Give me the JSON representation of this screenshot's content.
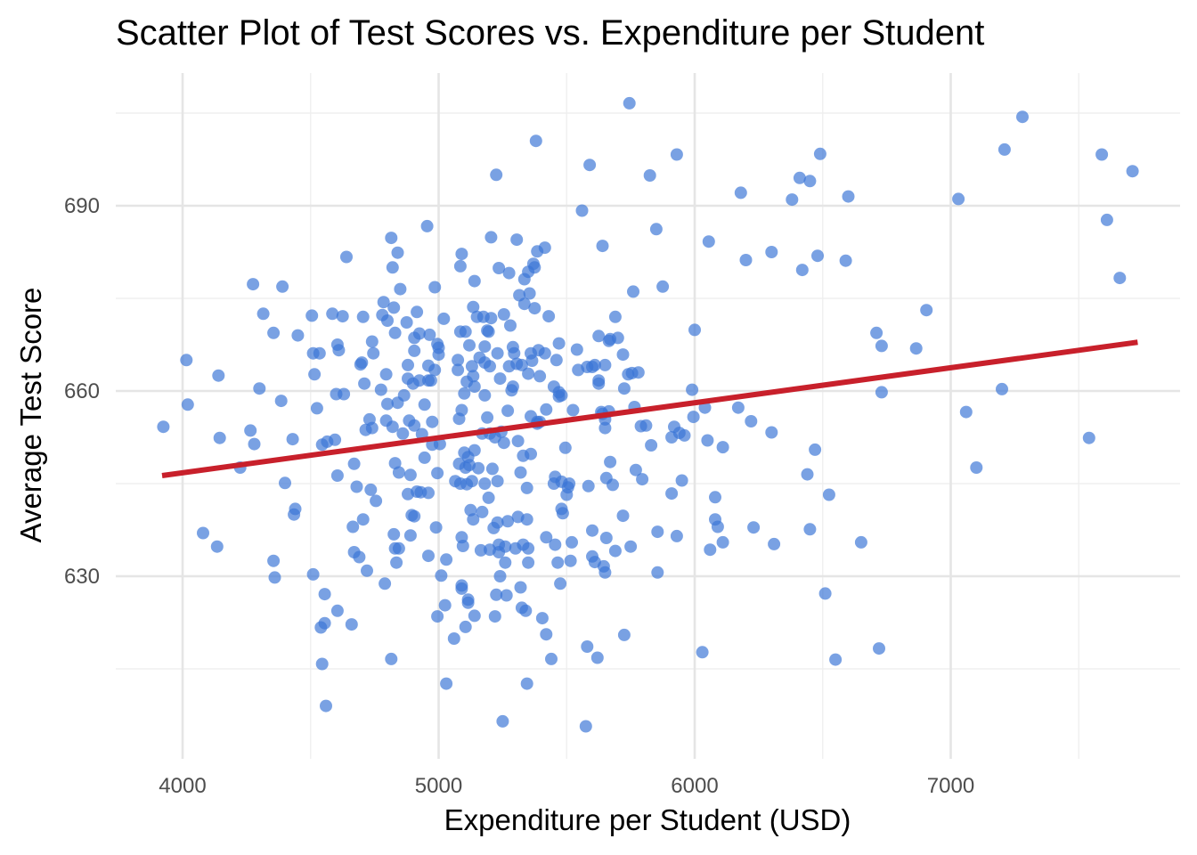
{
  "chart_data": {
    "type": "scatter",
    "title": "Scatter Plot of Test Scores vs. Expenditure per Student",
    "xlabel": "Expenditure per Student (USD)",
    "ylabel": "Average Test Score",
    "xlim": [
      3740,
      7800
    ],
    "ylim": [
      603,
      707
    ],
    "x_ticks": [
      4000,
      5000,
      6000,
      7000
    ],
    "y_ticks": [
      630,
      660,
      690
    ],
    "grid": true,
    "legend": "none",
    "colors": {
      "points": "#3a75d6",
      "trend": "#c8202b"
    },
    "trendline": {
      "x": [
        3920,
        7730
      ],
      "y": [
        646.3,
        667.9
      ]
    },
    "points": [
      [
        3925,
        654.2
      ],
      [
        4015,
        665.0
      ],
      [
        4020,
        657.8
      ],
      [
        4080,
        637.0
      ],
      [
        4135,
        634.8
      ],
      [
        4140,
        662.5
      ],
      [
        4145,
        652.4
      ],
      [
        4225,
        647.6
      ],
      [
        4265,
        653.6
      ],
      [
        4275,
        677.3
      ],
      [
        4280,
        651.4
      ],
      [
        4300,
        660.4
      ],
      [
        4315,
        672.5
      ],
      [
        4355,
        669.4
      ],
      [
        4360,
        629.8
      ],
      [
        4355,
        632.5
      ],
      [
        4385,
        658.4
      ],
      [
        4390,
        676.9
      ],
      [
        4400,
        645.1
      ],
      [
        4430,
        652.2
      ],
      [
        4435,
        640.0
      ],
      [
        4440,
        640.9
      ],
      [
        4450,
        669.0
      ],
      [
        4505,
        672.2
      ],
      [
        4510,
        666.1
      ],
      [
        4510,
        630.3
      ],
      [
        4515,
        662.7
      ],
      [
        4525,
        657.2
      ],
      [
        4535,
        666.1
      ],
      [
        4540,
        621.7
      ],
      [
        4545,
        651.3
      ],
      [
        4545,
        615.8
      ],
      [
        4555,
        622.4
      ],
      [
        4555,
        627.1
      ],
      [
        4560,
        609.0
      ],
      [
        4565,
        651.8
      ],
      [
        4585,
        672.5
      ],
      [
        4595,
        652.1
      ],
      [
        4600,
        659.5
      ],
      [
        4605,
        646.3
      ],
      [
        4605,
        667.5
      ],
      [
        4605,
        624.4
      ],
      [
        4610,
        666.6
      ],
      [
        4625,
        672.1
      ],
      [
        4630,
        659.5
      ],
      [
        4640,
        681.7
      ],
      [
        4660,
        622.2
      ],
      [
        4665,
        638.0
      ],
      [
        4670,
        648.2
      ],
      [
        4670,
        633.9
      ],
      [
        4680,
        644.5
      ],
      [
        4690,
        633.1
      ],
      [
        4695,
        664.3
      ],
      [
        4700,
        664.6
      ],
      [
        4705,
        639.2
      ],
      [
        4705,
        672.0
      ],
      [
        4710,
        661.2
      ],
      [
        4715,
        653.7
      ],
      [
        4720,
        630.9
      ],
      [
        4730,
        655.4
      ],
      [
        4735,
        644.0
      ],
      [
        4740,
        668.0
      ],
      [
        4740,
        654.0
      ],
      [
        4745,
        666.1
      ],
      [
        4755,
        642.2
      ],
      [
        4775,
        660.2
      ],
      [
        4780,
        672.3
      ],
      [
        4785,
        674.4
      ],
      [
        4790,
        628.8
      ],
      [
        4795,
        662.7
      ],
      [
        4795,
        655.2
      ],
      [
        4800,
        671.4
      ],
      [
        4800,
        657.9
      ],
      [
        4815,
        684.8
      ],
      [
        4815,
        616.6
      ],
      [
        4820,
        654.2
      ],
      [
        4820,
        680.0
      ],
      [
        4825,
        673.5
      ],
      [
        4825,
        636.8
      ],
      [
        4830,
        669.4
      ],
      [
        4830,
        634.5
      ],
      [
        4830,
        648.3
      ],
      [
        4835,
        632.2
      ],
      [
        4840,
        682.4
      ],
      [
        4840,
        658.1
      ],
      [
        4845,
        646.8
      ],
      [
        4845,
        634.5
      ],
      [
        4850,
        676.5
      ],
      [
        4860,
        653.1
      ],
      [
        4865,
        659.3
      ],
      [
        4875,
        671.1
      ],
      [
        4880,
        643.3
      ],
      [
        4880,
        664.2
      ],
      [
        4880,
        662.0
      ],
      [
        4885,
        655.2
      ],
      [
        4890,
        646.4
      ],
      [
        4890,
        636.6
      ],
      [
        4895,
        639.9
      ],
      [
        4900,
        661.2
      ],
      [
        4905,
        654.4
      ],
      [
        4905,
        666.5
      ],
      [
        4905,
        639.7
      ],
      [
        4905,
        668.6
      ],
      [
        4915,
        643.7
      ],
      [
        4915,
        672.8
      ],
      [
        4925,
        669.3
      ],
      [
        4925,
        661.7
      ],
      [
        4930,
        643.6
      ],
      [
        4935,
        653.0
      ],
      [
        4945,
        649.2
      ],
      [
        4945,
        657.8
      ],
      [
        4955,
        686.7
      ],
      [
        4960,
        664.1
      ],
      [
        4960,
        633.3
      ],
      [
        4960,
        661.7
      ],
      [
        4960,
        643.5
      ],
      [
        4965,
        669.1
      ],
      [
        4970,
        661.7
      ],
      [
        4975,
        655.0
      ],
      [
        4975,
        651.3
      ],
      [
        4985,
        676.8
      ],
      [
        4985,
        663.4
      ],
      [
        4990,
        637.9
      ],
      [
        4995,
        667.6
      ],
      [
        4995,
        646.7
      ],
      [
        4995,
        623.5
      ],
      [
        5000,
        667.0
      ],
      [
        5000,
        665.9
      ],
      [
        5005,
        651.4
      ],
      [
        5010,
        630.1
      ],
      [
        5020,
        671.7
      ],
      [
        5025,
        625.3
      ],
      [
        5030,
        632.7
      ],
      [
        5030,
        612.6
      ],
      [
        5060,
        619.9
      ],
      [
        5065,
        645.4
      ],
      [
        5075,
        663.4
      ],
      [
        5075,
        665.0
      ],
      [
        5080,
        655.5
      ],
      [
        5080,
        648.2
      ],
      [
        5085,
        680.2
      ],
      [
        5085,
        669.6
      ],
      [
        5085,
        645.0
      ],
      [
        5090,
        682.2
      ],
      [
        5090,
        656.9
      ],
      [
        5090,
        636.3
      ],
      [
        5090,
        628.5
      ],
      [
        5090,
        628.0
      ],
      [
        5095,
        634.9
      ],
      [
        5100,
        659.6
      ],
      [
        5100,
        650.0
      ],
      [
        5105,
        669.6
      ],
      [
        5105,
        647.6
      ],
      [
        5105,
        621.8
      ],
      [
        5110,
        661.5
      ],
      [
        5110,
        644.9
      ],
      [
        5115,
        649.3
      ],
      [
        5115,
        625.7
      ],
      [
        5115,
        626.2
      ],
      [
        5120,
        667.4
      ],
      [
        5120,
        648.0
      ],
      [
        5125,
        640.7
      ],
      [
        5130,
        664.0
      ],
      [
        5130,
        645.4
      ],
      [
        5135,
        673.6
      ],
      [
        5135,
        662.4
      ],
      [
        5135,
        639.2
      ],
      [
        5140,
        677.8
      ],
      [
        5140,
        660.7
      ],
      [
        5140,
        650.4
      ],
      [
        5140,
        623.6
      ],
      [
        5150,
        672.0
      ],
      [
        5155,
        647.5
      ],
      [
        5160,
        665.4
      ],
      [
        5165,
        634.2
      ],
      [
        5170,
        640.4
      ],
      [
        5170,
        653.1
      ],
      [
        5175,
        672.0
      ],
      [
        5180,
        667.2
      ],
      [
        5180,
        659.3
      ],
      [
        5180,
        664.6
      ],
      [
        5180,
        645.0
      ],
      [
        5190,
        669.8
      ],
      [
        5190,
        655.7
      ],
      [
        5195,
        669.6
      ],
      [
        5195,
        642.7
      ],
      [
        5200,
        664.0
      ],
      [
        5200,
        653.1
      ],
      [
        5200,
        634.3
      ],
      [
        5205,
        684.9
      ],
      [
        5205,
        671.8
      ],
      [
        5210,
        647.4
      ],
      [
        5215,
        637.8
      ],
      [
        5220,
        652.5
      ],
      [
        5220,
        623.5
      ],
      [
        5225,
        695.0
      ],
      [
        5225,
        627.0
      ],
      [
        5230,
        666.1
      ],
      [
        5230,
        645.4
      ],
      [
        5230,
        638.7
      ],
      [
        5235,
        679.9
      ],
      [
        5235,
        635.1
      ],
      [
        5235,
        633.9
      ],
      [
        5240,
        662.0
      ],
      [
        5240,
        630.0
      ],
      [
        5245,
        653.4
      ],
      [
        5250,
        606.5
      ],
      [
        5255,
        672.4
      ],
      [
        5255,
        651.6
      ],
      [
        5260,
        634.8
      ],
      [
        5260,
        632.2
      ],
      [
        5265,
        626.9
      ],
      [
        5270,
        656.8
      ],
      [
        5270,
        638.9
      ],
      [
        5275,
        679.1
      ],
      [
        5275,
        664.0
      ],
      [
        5280,
        670.6
      ],
      [
        5285,
        660.1
      ],
      [
        5290,
        667.1
      ],
      [
        5290,
        660.7
      ],
      [
        5295,
        666.1
      ],
      [
        5300,
        634.5
      ],
      [
        5305,
        684.5
      ],
      [
        5305,
        664.4
      ],
      [
        5310,
        639.6
      ],
      [
        5310,
        651.9
      ],
      [
        5315,
        675.5
      ],
      [
        5320,
        628.2
      ],
      [
        5320,
        646.8
      ],
      [
        5325,
        664.2
      ],
      [
        5325,
        624.9
      ],
      [
        5330,
        649.5
      ],
      [
        5330,
        635.1
      ],
      [
        5335,
        674.1
      ],
      [
        5335,
        678.1
      ],
      [
        5340,
        624.4
      ],
      [
        5345,
        612.6
      ],
      [
        5345,
        639.2
      ],
      [
        5345,
        644.3
      ],
      [
        5350,
        679.3
      ],
      [
        5350,
        662.8
      ],
      [
        5350,
        634.5
      ],
      [
        5350,
        632.2
      ],
      [
        5355,
        675.8
      ],
      [
        5360,
        666.1
      ],
      [
        5360,
        649.8
      ],
      [
        5360,
        655.9
      ],
      [
        5365,
        664.9
      ],
      [
        5370,
        680.6
      ],
      [
        5375,
        680.0
      ],
      [
        5375,
        673.4
      ],
      [
        5380,
        700.5
      ],
      [
        5385,
        655.0
      ],
      [
        5385,
        654.7
      ],
      [
        5385,
        682.6
      ],
      [
        5390,
        666.6
      ],
      [
        5395,
        662.4
      ],
      [
        5395,
        655.0
      ],
      [
        5405,
        623.2
      ],
      [
        5415,
        683.2
      ],
      [
        5415,
        666.1
      ],
      [
        5420,
        657.0
      ],
      [
        5420,
        636.3
      ],
      [
        5420,
        620.6
      ],
      [
        5430,
        672.1
      ],
      [
        5440,
        616.6
      ],
      [
        5450,
        645.0
      ],
      [
        5450,
        660.7
      ],
      [
        5455,
        635.1
      ],
      [
        5455,
        646.1
      ],
      [
        5460,
        665.0
      ],
      [
        5465,
        632.2
      ],
      [
        5470,
        659.8
      ],
      [
        5470,
        667.7
      ],
      [
        5470,
        659.1
      ],
      [
        5475,
        628.8
      ],
      [
        5480,
        659.3
      ],
      [
        5480,
        640.9
      ],
      [
        5480,
        645.3
      ],
      [
        5485,
        640.2
      ],
      [
        5495,
        650.8
      ],
      [
        5500,
        643.2
      ],
      [
        5505,
        644.4
      ],
      [
        5510,
        645.0
      ],
      [
        5515,
        632.5
      ],
      [
        5520,
        635.5
      ],
      [
        5525,
        656.9
      ],
      [
        5540,
        666.7
      ],
      [
        5545,
        663.4
      ],
      [
        5560,
        689.2
      ],
      [
        5575,
        605.7
      ],
      [
        5580,
        663.9
      ],
      [
        5580,
        618.6
      ],
      [
        5585,
        644.6
      ],
      [
        5590,
        696.6
      ],
      [
        5600,
        663.9
      ],
      [
        5600,
        637.4
      ],
      [
        5600,
        633.2
      ],
      [
        5610,
        664.2
      ],
      [
        5610,
        632.3
      ],
      [
        5620,
        616.8
      ],
      [
        5625,
        668.9
      ],
      [
        5625,
        661.7
      ],
      [
        5625,
        661.2
      ],
      [
        5635,
        656.6
      ],
      [
        5640,
        656.3
      ],
      [
        5640,
        683.5
      ],
      [
        5645,
        631.6
      ],
      [
        5650,
        664.2
      ],
      [
        5650,
        655.4
      ],
      [
        5650,
        654.0
      ],
      [
        5650,
        630.6
      ],
      [
        5655,
        636.2
      ],
      [
        5655,
        645.9
      ],
      [
        5665,
        656.7
      ],
      [
        5665,
        668.1
      ],
      [
        5670,
        668.4
      ],
      [
        5670,
        648.5
      ],
      [
        5680,
        644.8
      ],
      [
        5690,
        634.1
      ],
      [
        5690,
        672.0
      ],
      [
        5700,
        668.6
      ],
      [
        5720,
        665.9
      ],
      [
        5720,
        639.8
      ],
      [
        5725,
        660.4
      ],
      [
        5725,
        620.5
      ],
      [
        5740,
        662.7
      ],
      [
        5745,
        706.6
      ],
      [
        5750,
        634.8
      ],
      [
        5755,
        662.9
      ],
      [
        5760,
        676.1
      ],
      [
        5765,
        657.4
      ],
      [
        5770,
        647.2
      ],
      [
        5780,
        663.0
      ],
      [
        5790,
        654.3
      ],
      [
        5795,
        645.7
      ],
      [
        5810,
        654.4
      ],
      [
        5825,
        694.9
      ],
      [
        5830,
        651.2
      ],
      [
        5850,
        686.2
      ],
      [
        5855,
        630.6
      ],
      [
        5855,
        637.2
      ],
      [
        5875,
        676.9
      ],
      [
        5910,
        643.4
      ],
      [
        5910,
        652.5
      ],
      [
        5920,
        654.2
      ],
      [
        5930,
        698.3
      ],
      [
        5930,
        636.5
      ],
      [
        5940,
        653.2
      ],
      [
        5950,
        645.5
      ],
      [
        5960,
        652.8
      ],
      [
        5990,
        660.2
      ],
      [
        5995,
        655.8
      ],
      [
        6000,
        669.9
      ],
      [
        6030,
        617.7
      ],
      [
        6040,
        657.3
      ],
      [
        6050,
        652.0
      ],
      [
        6055,
        684.2
      ],
      [
        6060,
        634.3
      ],
      [
        6080,
        642.8
      ],
      [
        6080,
        639.2
      ],
      [
        6090,
        638.0
      ],
      [
        6110,
        650.9
      ],
      [
        6110,
        635.5
      ],
      [
        6170,
        657.3
      ],
      [
        6180,
        692.1
      ],
      [
        6200,
        681.2
      ],
      [
        6220,
        655.1
      ],
      [
        6230,
        637.9
      ],
      [
        6300,
        682.5
      ],
      [
        6300,
        653.3
      ],
      [
        6310,
        635.2
      ],
      [
        6380,
        691.0
      ],
      [
        6410,
        694.5
      ],
      [
        6420,
        679.6
      ],
      [
        6440,
        646.5
      ],
      [
        6450,
        694.0
      ],
      [
        6450,
        637.6
      ],
      [
        6470,
        650.5
      ],
      [
        6480,
        681.9
      ],
      [
        6490,
        698.4
      ],
      [
        6510,
        627.2
      ],
      [
        6525,
        643.2
      ],
      [
        6550,
        616.5
      ],
      [
        6590,
        681.1
      ],
      [
        6600,
        691.5
      ],
      [
        6650,
        635.5
      ],
      [
        6710,
        669.4
      ],
      [
        6720,
        618.3
      ],
      [
        6730,
        667.3
      ],
      [
        6730,
        659.8
      ],
      [
        6865,
        666.9
      ],
      [
        6905,
        673.1
      ],
      [
        7030,
        691.1
      ],
      [
        7060,
        656.6
      ],
      [
        7100,
        647.6
      ],
      [
        7200,
        660.3
      ],
      [
        7210,
        699.1
      ],
      [
        7280,
        704.4
      ],
      [
        7540,
        652.4
      ],
      [
        7590,
        698.3
      ],
      [
        7610,
        687.7
      ],
      [
        7660,
        678.3
      ],
      [
        7710,
        695.6
      ]
    ]
  }
}
